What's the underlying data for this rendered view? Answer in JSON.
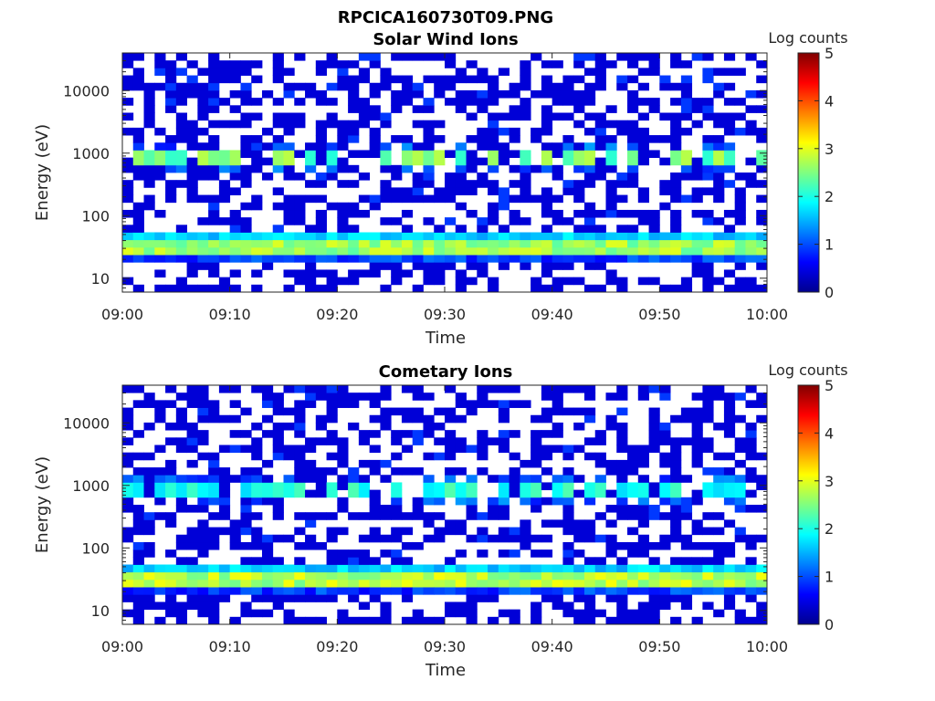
{
  "figure": {
    "title": "RPCICA160730T09.PNG"
  },
  "colormap": {
    "name": "jet",
    "stops": [
      "#00008f",
      "#0000ff",
      "#00ffff",
      "#ffff00",
      "#ff0000",
      "#800000"
    ]
  },
  "chart_data": [
    {
      "type": "heatmap",
      "title": "Solar Wind Ions",
      "xlabel": "Time",
      "ylabel": "Energy (eV)",
      "x_range": [
        "09:00",
        "10:00"
      ],
      "x_ticks": [
        "09:00",
        "09:10",
        "09:20",
        "09:30",
        "09:40",
        "09:50",
        "10:00"
      ],
      "y_scale": "log",
      "y_range_eV": [
        6,
        40000
      ],
      "y_ticks": [
        {
          "value": 10,
          "label": "10"
        },
        {
          "value": 100,
          "label": "100"
        },
        {
          "value": 1000,
          "label": "1000"
        },
        {
          "value": 10000,
          "label": "10000"
        }
      ],
      "time_bins": 60,
      "energy_bins": 32,
      "white_means_no_counts": true,
      "colorbar": {
        "label": "Log counts",
        "range": [
          0,
          5
        ],
        "ticks": [
          "0",
          "1",
          "2",
          "3",
          "4",
          "5"
        ]
      },
      "features": [
        {
          "description": "persistent ion band",
          "energy_eV": 35,
          "log_counts_peak": 3.0,
          "log_counts_typical": 2.3
        },
        {
          "description": "intermittent band",
          "energy_eV": 850,
          "log_counts_peak": 2.8,
          "log_counts_typical": 2.0
        },
        {
          "description": "sporadic background",
          "energy_range_eV": [
            60,
            40000
          ],
          "log_counts": 0.4
        }
      ]
    },
    {
      "type": "heatmap",
      "title": "Cometary Ions",
      "xlabel": "Time",
      "ylabel": "Energy (eV)",
      "x_range": [
        "09:00",
        "10:00"
      ],
      "x_ticks": [
        "09:00",
        "09:10",
        "09:20",
        "09:30",
        "09:40",
        "09:50",
        "10:00"
      ],
      "y_scale": "log",
      "y_range_eV": [
        6,
        40000
      ],
      "y_ticks": [
        {
          "value": 10,
          "label": "10"
        },
        {
          "value": 100,
          "label": "100"
        },
        {
          "value": 1000,
          "label": "1000"
        },
        {
          "value": 10000,
          "label": "10000"
        }
      ],
      "time_bins": 60,
      "energy_bins": 32,
      "white_means_no_counts": true,
      "colorbar": {
        "label": "Log counts",
        "range": [
          0,
          5
        ],
        "ticks": [
          "0",
          "1",
          "2",
          "3",
          "4",
          "5"
        ]
      },
      "features": [
        {
          "description": "persistent ion band",
          "energy_eV": 35,
          "log_counts_peak": 3.1,
          "log_counts_typical": 2.4
        },
        {
          "description": "intermittent band",
          "energy_eV": 850,
          "log_counts_peak": 2.3,
          "log_counts_typical": 1.7
        },
        {
          "description": "sporadic background",
          "energy_range_eV": [
            60,
            40000
          ],
          "log_counts": 0.4
        }
      ]
    }
  ]
}
